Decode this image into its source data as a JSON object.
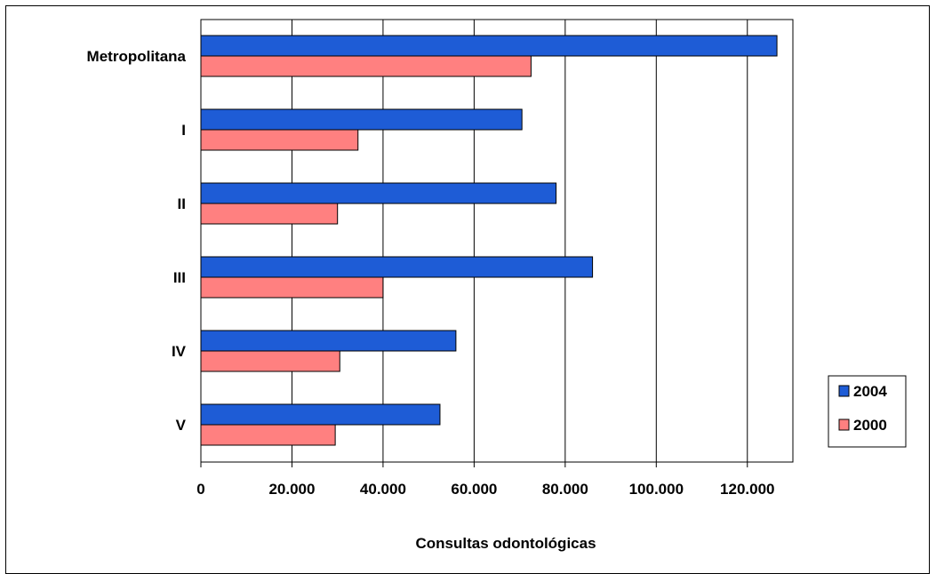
{
  "chart_data": {
    "type": "bar",
    "orientation": "horizontal",
    "categories": [
      "Metropolitana",
      "I",
      "II",
      "III",
      "IV",
      "V"
    ],
    "series": [
      {
        "name": "2004",
        "values": [
          126500,
          70500,
          78000,
          86000,
          56000,
          52500
        ],
        "color": "#1e5cd6"
      },
      {
        "name": "2000",
        "values": [
          72500,
          34500,
          30000,
          40000,
          30500,
          29500
        ],
        "color": "#ff8080"
      }
    ],
    "xlabel": "Consultas odontológicas",
    "ylabel": "",
    "xlim": [
      0,
      130000
    ],
    "xticks": [
      0,
      20000,
      40000,
      60000,
      80000,
      100000,
      120000
    ],
    "xtick_labels": [
      "0",
      "20.000",
      "40.000",
      "60.000",
      "80.000",
      "100.000",
      "120.000"
    ],
    "grid": "vertical",
    "legend": "right",
    "legend_order": [
      "2004",
      "2000"
    ]
  }
}
